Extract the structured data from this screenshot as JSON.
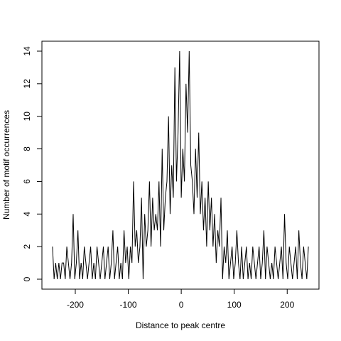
{
  "chart_data": {
    "type": "line",
    "xlabel": "Distance to peak centre",
    "ylabel": "Number of motif occurrences",
    "x": [
      -243,
      -240,
      -237,
      -234,
      -231,
      -228,
      -225,
      -222,
      -219,
      -216,
      -213,
      -210,
      -207,
      -204,
      -201,
      -198,
      -195,
      -192,
      -189,
      -186,
      -183,
      -180,
      -177,
      -174,
      -171,
      -168,
      -165,
      -162,
      -159,
      -156,
      -153,
      -150,
      -147,
      -144,
      -141,
      -138,
      -135,
      -132,
      -129,
      -126,
      -123,
      -120,
      -117,
      -114,
      -111,
      -108,
      -105,
      -102,
      -99,
      -96,
      -93,
      -90,
      -87,
      -84,
      -81,
      -78,
      -75,
      -72,
      -69,
      -66,
      -63,
      -60,
      -57,
      -54,
      -51,
      -48,
      -45,
      -42,
      -39,
      -36,
      -33,
      -30,
      -27,
      -24,
      -21,
      -18,
      -15,
      -12,
      -9,
      -6,
      -3,
      0,
      3,
      6,
      9,
      12,
      15,
      18,
      21,
      24,
      27,
      30,
      33,
      36,
      39,
      42,
      45,
      48,
      51,
      54,
      57,
      60,
      63,
      66,
      69,
      72,
      75,
      78,
      81,
      84,
      87,
      90,
      93,
      96,
      99,
      102,
      105,
      108,
      111,
      114,
      117,
      120,
      123,
      126,
      129,
      132,
      135,
      138,
      141,
      144,
      147,
      150,
      153,
      156,
      159,
      162,
      165,
      168,
      171,
      174,
      177,
      180,
      183,
      186,
      189,
      192,
      195,
      198,
      201,
      204,
      207,
      210,
      213,
      216,
      219,
      222,
      225,
      228,
      231,
      234,
      237,
      240
    ],
    "series": [
      {
        "color": "#000000",
        "values": [
          2,
          0,
          1,
          0,
          1,
          0,
          1,
          1,
          0,
          2,
          1,
          0,
          1,
          4,
          0,
          1,
          3,
          0,
          1,
          0,
          2,
          1,
          0,
          1,
          2,
          0,
          1,
          0,
          2,
          1,
          0,
          1,
          2,
          0,
          1,
          2,
          0,
          1,
          3,
          0,
          1,
          2,
          0,
          1,
          0,
          3,
          1,
          2,
          0,
          2,
          1,
          6,
          2,
          3,
          1,
          2,
          5,
          0,
          4,
          2,
          3,
          6,
          2,
          5,
          3,
          4,
          3,
          6,
          2,
          8,
          3,
          5,
          6,
          10,
          4,
          7,
          5,
          13,
          6,
          9,
          14,
          5,
          8,
          6,
          12,
          9,
          14,
          7,
          6,
          4,
          8,
          5,
          9,
          4,
          6,
          3,
          5,
          2,
          6,
          3,
          5,
          2,
          4,
          1,
          3,
          2,
          5,
          0,
          2,
          1,
          3,
          0,
          1,
          2,
          0,
          1,
          3,
          1,
          0,
          2,
          0,
          1,
          2,
          0,
          1,
          0,
          2,
          1,
          0,
          1,
          2,
          0,
          1,
          3,
          0,
          2,
          1,
          0,
          1,
          0,
          2,
          1,
          0,
          1,
          2,
          0,
          4,
          1,
          0,
          2,
          1,
          0,
          1,
          2,
          0,
          3,
          1,
          0,
          2,
          1,
          0,
          2
        ]
      }
    ],
    "xlim": [
      -263,
      260
    ],
    "ylim": [
      -0.61,
      14.61
    ],
    "xticks": [
      -200,
      -100,
      0,
      100,
      200
    ],
    "yticks": [
      0,
      2,
      4,
      6,
      8,
      10,
      12,
      14
    ]
  }
}
